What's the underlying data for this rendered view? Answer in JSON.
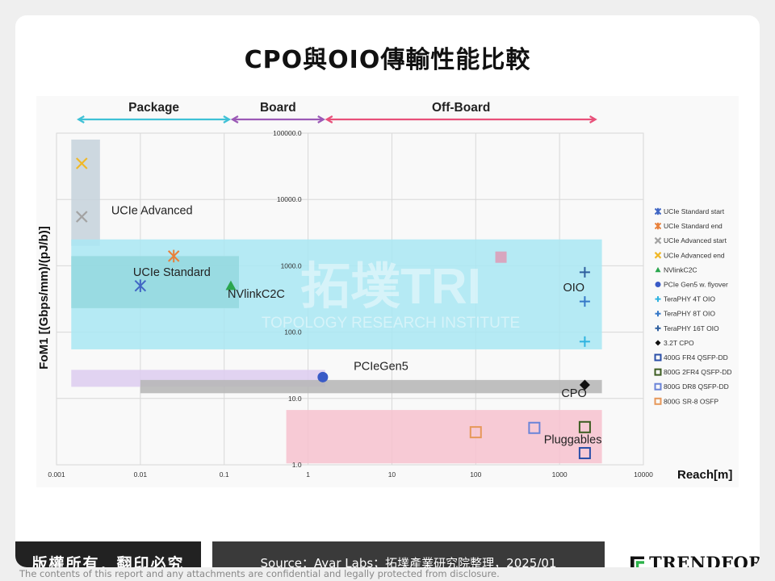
{
  "title": "CPO與OIO傳輸性能比較",
  "footer": {
    "copyright": "版權所有．翻印必究",
    "source": "Source：Ayar Labs；拓墣產業研究院整理，2025/01",
    "logo_text": "TRENDFORCE",
    "disclaimer": "The contents of this report and any attachments are confidential and legally protected from disclosure."
  },
  "watermark": {
    "main": "拓墣TRI",
    "sub": "TOPOLOGY RESEARCH INSTITUTE"
  },
  "chart_data": {
    "type": "scatter",
    "x_scale": "log",
    "y_scale": "log",
    "xlim": [
      0.001,
      10000
    ],
    "ylim": [
      1,
      100000
    ],
    "xlabel": "Reach[m]",
    "ylabel": "FoM1 [(Gbps/mm)/(pJ/b)]",
    "x_ticks": [
      {
        "value": 0.001,
        "label": "0.001"
      },
      {
        "value": 0.01,
        "label": "0.01"
      },
      {
        "value": 0.1,
        "label": "0.1"
      },
      {
        "value": 1,
        "label": "1"
      },
      {
        "value": 10,
        "label": "10"
      },
      {
        "value": 100,
        "label": "100"
      },
      {
        "value": 1000,
        "label": "1000"
      },
      {
        "value": 10000,
        "label": "10000"
      }
    ],
    "y_ticks": [
      {
        "value": 1,
        "label": "1.0"
      },
      {
        "value": 10,
        "label": "10.0"
      },
      {
        "value": 100,
        "label": "100.0"
      },
      {
        "value": 1000,
        "label": "1000.0"
      },
      {
        "value": 10000,
        "label": "10000.0"
      },
      {
        "value": 100000,
        "label": "100000.0"
      }
    ],
    "grid": true,
    "legend_position": "right",
    "reach_zones": [
      {
        "label": "Package",
        "from": 0.00175,
        "to": 0.12,
        "color": "#3fc1d6"
      },
      {
        "label": "Board",
        "from": 0.12,
        "to": 1.6,
        "color": "#9b59b6"
      },
      {
        "label": "Off-Board",
        "from": 1.6,
        "to": 2800,
        "color": "#e8507a"
      }
    ],
    "regions": [
      {
        "label": "UCIe Advanced",
        "x": [
          0.0015,
          0.0033
        ],
        "y": [
          2000,
          80000
        ],
        "color": "#c5d2dc",
        "label_x": 0.0045,
        "label_y": 6000
      },
      {
        "label": "OIO",
        "x": [
          0.0015,
          3200
        ],
        "y": [
          55,
          2500
        ],
        "color": "#a9e8f3",
        "label_x": 1100,
        "label_y": 410
      },
      {
        "label": "UCIe Standard",
        "x": [
          0.0015,
          0.15
        ],
        "y": [
          230,
          1400
        ],
        "color": "#94d8de",
        "label_x": 0.0082,
        "label_y": 700
      },
      {
        "label": "NVlinkC2C",
        "x": null,
        "y": null,
        "color": null,
        "label_x": 0.11,
        "label_y": 330
      },
      {
        "label": "PCIeGen5",
        "x": [
          0.0015,
          1.6
        ],
        "y": [
          15,
          27
        ],
        "color": "#ddcdf0",
        "label_x": 3.5,
        "label_y": 27
      },
      {
        "label": "CPO",
        "x": [
          0.01,
          3200
        ],
        "y": [
          12,
          19
        ],
        "color": "#b5b5b5",
        "label_x": 1050,
        "label_y": 10.5
      },
      {
        "label": "Pluggables",
        "x": [
          0.55,
          3200
        ],
        "y": [
          1.05,
          6.7
        ],
        "color": "#f7c2cf",
        "label_x": 650,
        "label_y": 2.1
      }
    ],
    "series": [
      {
        "name": "UCIe Standard start",
        "marker": "asterisk",
        "color": "#4066c4",
        "points": [
          [
            0.01,
            500
          ]
        ]
      },
      {
        "name": "UCIe Standard end",
        "marker": "asterisk",
        "color": "#e8803a",
        "points": [
          [
            0.025,
            1400
          ]
        ]
      },
      {
        "name": "UCIe Advanced start",
        "marker": "x",
        "color": "#a3a3a3",
        "points": [
          [
            0.002,
            5500
          ]
        ]
      },
      {
        "name": "UCIe Advanced end",
        "marker": "x",
        "color": "#f0b828",
        "points": [
          [
            0.002,
            35000
          ]
        ]
      },
      {
        "name": "NVlinkC2C",
        "marker": "triangle",
        "color": "#2aa64e",
        "points": [
          [
            0.12,
            500
          ]
        ]
      },
      {
        "name": "PCIe Gen5 w. flyover",
        "marker": "circle",
        "color": "#3a5bc7",
        "points": [
          [
            1.5,
            21
          ]
        ]
      },
      {
        "name": "TeraPHY 4T OIO",
        "marker": "plus",
        "color": "#2fb3e0",
        "points": [
          [
            2000,
            72
          ]
        ]
      },
      {
        "name": "TeraPHY 8T OIO",
        "marker": "plus",
        "color": "#3578c8",
        "points": [
          [
            2000,
            290
          ]
        ]
      },
      {
        "name": "TeraPHY 16T OIO",
        "marker": "plus",
        "color": "#2f5f9e",
        "points": [
          [
            2000,
            800
          ]
        ]
      },
      {
        "name": "3.2T CPO",
        "marker": "diamond",
        "color": "#111111",
        "points": [
          [
            2000,
            16
          ]
        ]
      },
      {
        "name": "400G FR4 QSFP-DD",
        "marker": "square-open",
        "color": "#2a4fa8",
        "points": [
          [
            2000,
            1.5
          ]
        ]
      },
      {
        "name": "800G 2FR4 QSFP-DD",
        "marker": "square-open",
        "color": "#3d5d22",
        "points": [
          [
            2000,
            3.7
          ]
        ]
      },
      {
        "name": "800G DR8 QSFP-DD",
        "marker": "square-open",
        "color": "#6a84d8",
        "points": [
          [
            500,
            3.6
          ]
        ]
      },
      {
        "name": "800G SR-8 OSFP",
        "marker": "square-open",
        "color": "#e6985a",
        "points": [
          [
            100,
            3.1
          ]
        ]
      }
    ],
    "extra_marks": [
      {
        "marker": "square-filled",
        "color": "#d8a6bf",
        "x": 200,
        "y": 1350
      }
    ]
  }
}
